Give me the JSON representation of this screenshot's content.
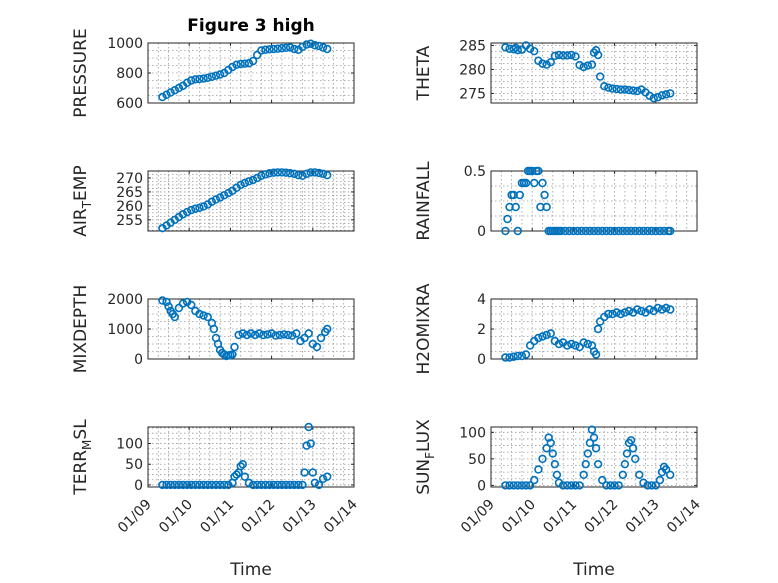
{
  "figure": {
    "title": "Figure 3 high",
    "xlabel": "Time",
    "xticks": [
      "01/09",
      "01/10",
      "01/11",
      "01/12",
      "01/13",
      "01/14"
    ],
    "marker_color": "#0072bd",
    "grid": true
  },
  "chart_data": [
    {
      "type": "scatter",
      "ylabel": "PRESSURE",
      "ylim": [
        600,
        1000
      ],
      "yticks": [
        600,
        800,
        1000
      ],
      "x": [
        9.35,
        9.45,
        9.55,
        9.65,
        9.75,
        9.85,
        9.95,
        10.05,
        10.15,
        10.25,
        10.35,
        10.45,
        10.55,
        10.65,
        10.75,
        10.85,
        10.95,
        11.05,
        11.15,
        11.25,
        11.35,
        11.45,
        11.55,
        11.65,
        11.75,
        11.85,
        11.95,
        12.05,
        12.15,
        12.25,
        12.35,
        12.45,
        12.55,
        12.65,
        12.75,
        12.85,
        12.95,
        13.05,
        13.15,
        13.25,
        13.35
      ],
      "y": [
        640,
        655,
        670,
        685,
        700,
        715,
        735,
        750,
        758,
        760,
        763,
        768,
        775,
        782,
        790,
        800,
        820,
        840,
        855,
        860,
        862,
        865,
        880,
        920,
        950,
        955,
        958,
        960,
        962,
        965,
        968,
        970,
        960,
        955,
        975,
        990,
        995,
        985,
        980,
        970,
        960
      ]
    },
    {
      "type": "scatter",
      "ylabel": "THETA",
      "ylim": [
        273,
        285.5
      ],
      "yticks": [
        275,
        280,
        285
      ],
      "x": [
        9.35,
        9.45,
        9.55,
        9.6,
        9.65,
        9.75,
        9.85,
        9.95,
        10.05,
        10.15,
        10.25,
        10.35,
        10.45,
        10.55,
        10.65,
        10.75,
        10.85,
        10.95,
        11.05,
        11.15,
        11.25,
        11.35,
        11.45,
        11.5,
        11.55,
        11.6,
        11.65,
        11.75,
        11.85,
        11.95,
        12.05,
        12.15,
        12.25,
        12.35,
        12.45,
        12.55,
        12.65,
        12.75,
        12.85,
        12.95,
        13.05,
        13.15,
        13.25,
        13.35
      ],
      "y": [
        284.6,
        284.3,
        284.2,
        284.5,
        284.0,
        284.1,
        285.0,
        284.3,
        283.8,
        281.8,
        281.2,
        281.0,
        281.5,
        282.8,
        283.0,
        282.9,
        282.9,
        283.0,
        282.7,
        280.9,
        280.5,
        280.8,
        281.0,
        283.5,
        284.0,
        283.0,
        278.5,
        276.5,
        276.2,
        276.0,
        275.9,
        275.8,
        275.8,
        275.7,
        275.6,
        275.5,
        275.8,
        275.2,
        274.5,
        274.0,
        274.2,
        274.6,
        274.8,
        275.0
      ]
    },
    {
      "type": "scatter",
      "ylabel": "AIR_TEMP",
      "ylim": [
        251,
        272.5
      ],
      "yticks": [
        255,
        260,
        265,
        270
      ],
      "x": [
        9.35,
        9.45,
        9.55,
        9.65,
        9.75,
        9.85,
        9.95,
        10.05,
        10.15,
        10.25,
        10.35,
        10.45,
        10.55,
        10.65,
        10.75,
        10.85,
        10.95,
        11.05,
        11.15,
        11.25,
        11.35,
        11.45,
        11.55,
        11.65,
        11.75,
        11.85,
        11.95,
        12.05,
        12.15,
        12.25,
        12.35,
        12.45,
        12.55,
        12.65,
        12.75,
        12.85,
        12.95,
        13.05,
        13.15,
        13.25,
        13.35
      ],
      "y": [
        252.0,
        253.0,
        254.0,
        255.0,
        256.0,
        257.0,
        257.8,
        258.5,
        259.0,
        259.3,
        259.8,
        260.5,
        261.5,
        262.3,
        263.0,
        263.8,
        264.6,
        265.4,
        266.5,
        267.5,
        268.2,
        268.8,
        269.3,
        270.0,
        270.8,
        271.3,
        271.7,
        271.9,
        272.0,
        272.0,
        271.9,
        271.7,
        271.5,
        271.0,
        270.8,
        271.5,
        272.0,
        272.0,
        271.8,
        271.5,
        271.0
      ]
    },
    {
      "type": "scatter",
      "ylabel": "RAINFALL",
      "ylim": [
        0,
        0.5
      ],
      "yticks": [
        0,
        0.5
      ],
      "x": [
        9.35,
        9.4,
        9.45,
        9.5,
        9.55,
        9.6,
        9.65,
        9.7,
        9.75,
        9.8,
        9.85,
        9.9,
        9.95,
        10.0,
        10.05,
        10.1,
        10.15,
        10.2,
        10.25,
        10.3,
        10.35,
        10.4,
        10.45,
        10.5,
        10.55,
        10.6,
        10.65,
        10.7,
        10.8,
        10.9,
        11.0,
        11.1,
        11.2,
        11.3,
        11.4,
        11.5,
        11.6,
        11.7,
        11.8,
        11.9,
        12.0,
        12.1,
        12.2,
        12.3,
        12.4,
        12.5,
        12.6,
        12.7,
        12.8,
        12.9,
        13.0,
        13.1,
        13.2,
        13.3,
        13.35
      ],
      "y": [
        0,
        0.1,
        0.2,
        0.3,
        0.3,
        0.2,
        0,
        0.3,
        0.4,
        0.4,
        0.4,
        0.5,
        0.5,
        0.5,
        0.4,
        0.5,
        0.5,
        0.2,
        0.4,
        0.3,
        0.2,
        0,
        0,
        0,
        0,
        0,
        0,
        0,
        0,
        0,
        0,
        0,
        0,
        0,
        0,
        0,
        0,
        0,
        0,
        0,
        0,
        0,
        0,
        0,
        0,
        0,
        0,
        0,
        0,
        0,
        0,
        0,
        0,
        0,
        0
      ]
    },
    {
      "type": "scatter",
      "ylabel": "MIXDEPTH",
      "ylim": [
        0,
        2000
      ],
      "yticks": [
        0,
        1000,
        2000
      ],
      "x": [
        9.35,
        9.45,
        9.5,
        9.55,
        9.6,
        9.65,
        9.75,
        9.85,
        9.95,
        10.05,
        10.15,
        10.25,
        10.35,
        10.45,
        10.55,
        10.6,
        10.65,
        10.7,
        10.75,
        10.8,
        10.85,
        10.9,
        10.95,
        11.0,
        11.05,
        11.1,
        11.2,
        11.3,
        11.4,
        11.5,
        11.6,
        11.7,
        11.8,
        11.9,
        12.0,
        12.1,
        12.2,
        12.3,
        12.4,
        12.5,
        12.6,
        12.7,
        12.8,
        12.9,
        13.0,
        13.1,
        13.2,
        13.3,
        13.35
      ],
      "y": [
        1950,
        1900,
        1750,
        1600,
        1500,
        1400,
        1700,
        1850,
        1900,
        1800,
        1600,
        1500,
        1450,
        1400,
        1200,
        1000,
        700,
        500,
        300,
        200,
        150,
        100,
        120,
        130,
        150,
        400,
        800,
        850,
        800,
        850,
        800,
        850,
        800,
        820,
        850,
        780,
        800,
        820,
        800,
        780,
        850,
        600,
        700,
        850,
        500,
        400,
        700,
        900,
        1000
      ]
    },
    {
      "type": "scatter",
      "ylabel": "H2OMIXRA",
      "ylim": [
        0,
        4
      ],
      "yticks": [
        0,
        2,
        4
      ],
      "x": [
        9.35,
        9.45,
        9.55,
        9.65,
        9.75,
        9.85,
        9.95,
        10.05,
        10.15,
        10.25,
        10.35,
        10.45,
        10.55,
        10.65,
        10.75,
        10.85,
        10.95,
        11.05,
        11.15,
        11.25,
        11.35,
        11.45,
        11.5,
        11.55,
        11.6,
        11.65,
        11.75,
        11.85,
        11.95,
        12.05,
        12.15,
        12.25,
        12.35,
        12.45,
        12.55,
        12.65,
        12.75,
        12.85,
        12.95,
        13.05,
        13.15,
        13.25,
        13.35
      ],
      "y": [
        0.1,
        0.1,
        0.15,
        0.2,
        0.2,
        0.3,
        0.9,
        1.2,
        1.4,
        1.5,
        1.6,
        1.7,
        1.2,
        1.0,
        1.1,
        0.9,
        1.0,
        0.9,
        0.8,
        1.1,
        1.0,
        0.9,
        0.5,
        0.3,
        2.0,
        2.5,
        2.8,
        3.0,
        3.0,
        3.1,
        3.0,
        3.1,
        3.2,
        3.1,
        3.3,
        3.2,
        3.1,
        3.3,
        3.2,
        3.4,
        3.3,
        3.4,
        3.3
      ]
    },
    {
      "type": "scatter",
      "ylabel": "TERR_MSL",
      "ylim": [
        -5,
        140
      ],
      "yticks": [
        0,
        50,
        100
      ],
      "x": [
        9.35,
        9.45,
        9.55,
        9.65,
        9.75,
        9.85,
        9.95,
        10.05,
        10.15,
        10.25,
        10.35,
        10.45,
        10.55,
        10.65,
        10.75,
        10.85,
        10.95,
        11.05,
        11.1,
        11.15,
        11.2,
        11.25,
        11.3,
        11.35,
        11.45,
        11.55,
        11.65,
        11.75,
        11.85,
        11.95,
        12.05,
        12.15,
        12.25,
        12.35,
        12.45,
        12.55,
        12.65,
        12.75,
        12.8,
        12.85,
        12.9,
        12.95,
        13.0,
        13.05,
        13.15,
        13.25,
        13.35
      ],
      "y": [
        0,
        0,
        0,
        0,
        0,
        0,
        0,
        0,
        0,
        0,
        0,
        0,
        0,
        0,
        0,
        0,
        0,
        5,
        20,
        25,
        30,
        45,
        50,
        20,
        5,
        0,
        0,
        0,
        0,
        0,
        0,
        0,
        0,
        0,
        0,
        0,
        0,
        0,
        30,
        95,
        140,
        100,
        30,
        5,
        0,
        15,
        20
      ]
    },
    {
      "type": "scatter",
      "ylabel": "SUN_FLUX",
      "ylim": [
        -3,
        110
      ],
      "yticks": [
        0,
        50,
        100
      ],
      "x": [
        9.35,
        9.45,
        9.55,
        9.65,
        9.75,
        9.85,
        9.95,
        10.05,
        10.15,
        10.25,
        10.35,
        10.4,
        10.45,
        10.5,
        10.55,
        10.6,
        10.65,
        10.75,
        10.85,
        10.95,
        11.05,
        11.15,
        11.25,
        11.3,
        11.35,
        11.4,
        11.45,
        11.5,
        11.55,
        11.6,
        11.7,
        11.8,
        11.9,
        12.0,
        12.1,
        12.2,
        12.25,
        12.3,
        12.35,
        12.4,
        12.45,
        12.5,
        12.6,
        12.7,
        12.8,
        12.9,
        13.0,
        13.1,
        13.15,
        13.2,
        13.25,
        13.35
      ],
      "y": [
        0,
        0,
        0,
        0,
        0,
        0,
        0,
        10,
        30,
        50,
        70,
        90,
        80,
        60,
        40,
        20,
        5,
        0,
        0,
        0,
        0,
        0,
        20,
        40,
        60,
        80,
        105,
        90,
        70,
        40,
        10,
        0,
        0,
        0,
        0,
        20,
        40,
        60,
        80,
        85,
        70,
        50,
        20,
        5,
        0,
        0,
        0,
        10,
        25,
        35,
        30,
        20
      ]
    }
  ]
}
